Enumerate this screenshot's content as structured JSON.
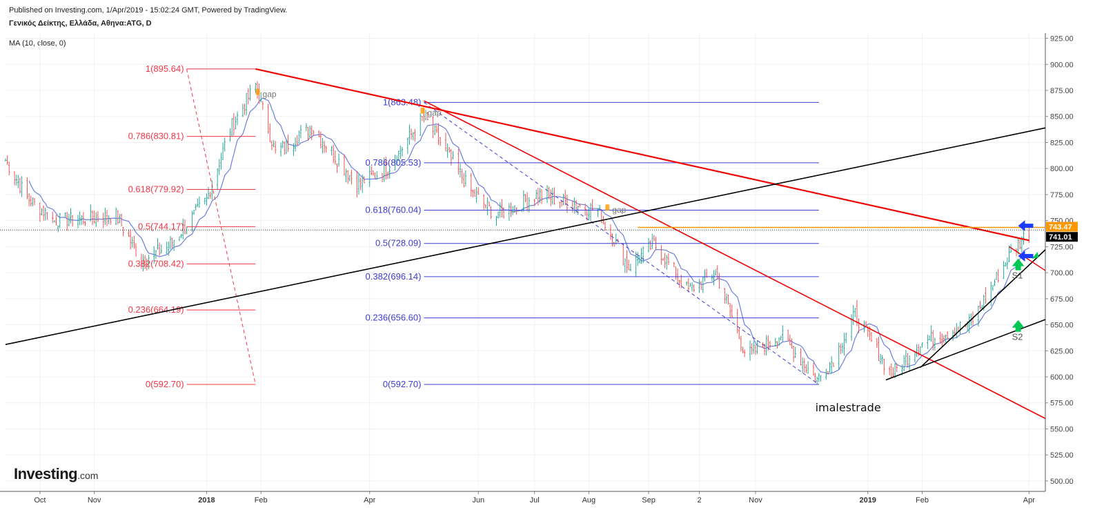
{
  "header": {
    "published": "Published on Investing.com, 1/Apr/2019 - 15:02:24 GMT, Powered by TradingView.",
    "symbol": "Γενικός Δείκτης, Ελλάδα, Αθηνα:ATG, D",
    "indicator": "MA (10, close, 0)"
  },
  "logo": {
    "brand": "Investing",
    "suffix": ".com"
  },
  "watermark": "imalestrade",
  "colors": {
    "up": "#26a69a",
    "down": "#ef5350",
    "ma": "#6a7de0",
    "fib_red": "#f23645",
    "fib_blue": "#3b3bd6",
    "trendline_red": "#f00000",
    "trendline_black": "#000000",
    "price_tag_orange": "#ff9800",
    "price_tag_black": "#000000",
    "arrow_green": "#00c853",
    "arrow_blue": "#1a3cff"
  },
  "chart_data": {
    "type": "candlestick",
    "instrument": "Γενικός Δείκτης, Ελλάδα, Αθηνα:ATG",
    "timeframe": "D",
    "ylim": [
      490,
      930
    ],
    "y_ticks": [
      "500.00",
      "525.00",
      "550.00",
      "575.00",
      "600.00",
      "625.00",
      "650.00",
      "675.00",
      "700.00",
      "725.00",
      "750.00",
      "775.00",
      "800.00",
      "825.00",
      "850.00",
      "875.00",
      "900.00",
      "925.00"
    ],
    "x_ticks": [
      "Oct",
      "Nov",
      "2018",
      "Feb",
      "Apr",
      "Jun",
      "Jul",
      "Aug",
      "Sep",
      "2",
      "Nov",
      "2019",
      "Feb",
      "Apr"
    ],
    "x_ticks_bold": [
      "2018",
      "2019"
    ],
    "grid": true,
    "price_series_anchors": [
      {
        "date": "2017-09-13",
        "close": 808
      },
      {
        "date": "2017-09-25",
        "close": 772
      },
      {
        "date": "2017-10-10",
        "close": 750
      },
      {
        "date": "2017-10-30",
        "close": 752
      },
      {
        "date": "2017-11-13",
        "close": 755
      },
      {
        "date": "2017-11-27",
        "close": 712
      },
      {
        "date": "2017-12-12",
        "close": 725
      },
      {
        "date": "2018-01-02",
        "close": 770
      },
      {
        "date": "2018-01-15",
        "close": 838
      },
      {
        "date": "2018-01-29",
        "close": 880
      },
      {
        "date": "2018-02-09",
        "close": 815
      },
      {
        "date": "2018-03-01",
        "close": 840
      },
      {
        "date": "2018-03-26",
        "close": 785
      },
      {
        "date": "2018-04-12",
        "close": 800
      },
      {
        "date": "2018-05-02",
        "close": 850
      },
      {
        "date": "2018-05-28",
        "close": 778
      },
      {
        "date": "2018-06-11",
        "close": 755
      },
      {
        "date": "2018-07-04",
        "close": 775
      },
      {
        "date": "2018-08-06",
        "close": 760
      },
      {
        "date": "2018-08-23",
        "close": 705
      },
      {
        "date": "2018-09-06",
        "close": 728
      },
      {
        "date": "2018-09-25",
        "close": 683
      },
      {
        "date": "2018-10-10",
        "close": 700
      },
      {
        "date": "2018-10-27",
        "close": 620
      },
      {
        "date": "2018-11-15",
        "close": 640
      },
      {
        "date": "2018-12-05",
        "close": 597
      },
      {
        "date": "2018-12-14",
        "close": 617
      },
      {
        "date": "2018-12-26",
        "close": 660
      },
      {
        "date": "2019-01-15",
        "close": 602
      },
      {
        "date": "2019-01-31",
        "close": 632
      },
      {
        "date": "2019-02-28",
        "close": 652
      },
      {
        "date": "2019-03-21",
        "close": 716
      },
      {
        "date": "2019-04-01",
        "close": 741
      }
    ],
    "ma": {
      "label": "MA (10, close, 0)",
      "period": 10
    },
    "fib_retracement_1": {
      "color": "red",
      "levels": [
        {
          "label": "1(895.64)",
          "value": 895.64
        },
        {
          "label": "0.786(830.81)",
          "value": 830.81
        },
        {
          "label": "0.618(779.92)",
          "value": 779.92
        },
        {
          "label": "0.5(744.17)",
          "value": 744.17
        },
        {
          "label": "0.382(708.42)",
          "value": 708.42
        },
        {
          "label": "0.236(664.19)",
          "value": 664.19
        },
        {
          "label": "0(592.70)",
          "value": 592.7
        }
      ]
    },
    "fib_retracement_2": {
      "color": "blue",
      "levels": [
        {
          "label": "1(863.48)",
          "value": 863.48
        },
        {
          "label": "0.786(805.53)",
          "value": 805.53
        },
        {
          "label": "0.618(760.04)",
          "value": 760.04
        },
        {
          "label": "0.5(728.09)",
          "value": 728.09
        },
        {
          "label": "0.382(696.14)",
          "value": 696.14
        },
        {
          "label": "0.236(656.60)",
          "value": 656.6
        },
        {
          "label": "0(592.70)",
          "value": 592.7
        }
      ]
    },
    "trendlines": [
      {
        "color": "red",
        "from": {
          "date": "2018-01-29",
          "price": 895.6
        },
        "to": {
          "date": "2019-04-01",
          "price": 731
        }
      },
      {
        "color": "red",
        "from": {
          "date": "2018-05-02",
          "price": 865
        },
        "to": {
          "date": "2019-04-10",
          "price": 560
        }
      },
      {
        "color": "black",
        "from": {
          "date": "2017-09-13",
          "price": 631
        },
        "to": {
          "date": "2019-04-10",
          "price": 839
        }
      },
      {
        "color": "black",
        "from": {
          "date": "2019-01-12",
          "price": 597
        },
        "to": {
          "date": "2019-04-10",
          "price": 655
        }
      },
      {
        "color": "black",
        "from": {
          "date": "2019-01-31",
          "price": 609
        },
        "to": {
          "date": "2019-04-10",
          "price": 722
        }
      }
    ],
    "horizontal_levels": [
      {
        "color": "orange",
        "price": 743.47
      },
      {
        "color": "black-dotted",
        "price": 741.01
      }
    ],
    "annotations": [
      {
        "text": "gap",
        "date": "2018-01-31",
        "price": 866
      },
      {
        "text": "gap",
        "date": "2018-05-02",
        "price": 848
      },
      {
        "text": "gap",
        "date": "2018-08-12",
        "price": 755
      },
      {
        "text": "S1",
        "date": "2019-03-26",
        "price": 693
      },
      {
        "text": "S2",
        "date": "2019-03-26",
        "price": 634
      }
    ],
    "price_labels": [
      {
        "text": "743.47",
        "color": "orange",
        "price": 743.47
      },
      {
        "text": "741.01",
        "color": "black",
        "price": 741.01
      }
    ]
  }
}
